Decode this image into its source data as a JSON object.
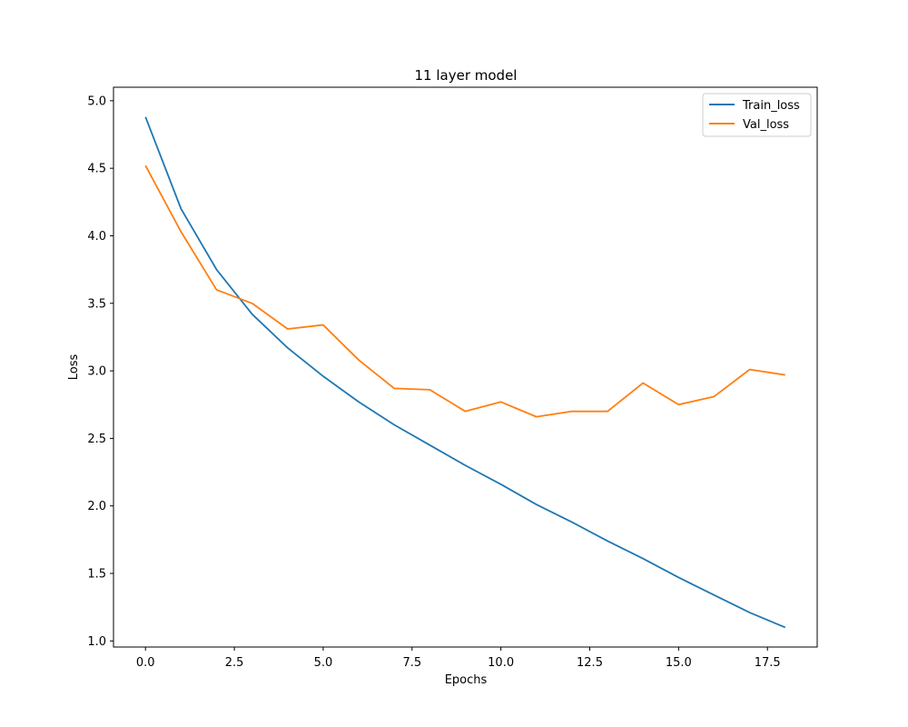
{
  "chart_data": {
    "type": "line",
    "title": "11 layer model",
    "xlabel": "Epochs",
    "ylabel": "Loss",
    "xlim": [
      -0.9,
      18.9
    ],
    "ylim": [
      0.955,
      5.1
    ],
    "x_ticks": [
      0,
      2.5,
      5,
      7.5,
      10,
      12.5,
      15,
      17.5
    ],
    "x_tick_labels": [
      "0.0",
      "2.5",
      "5.0",
      "7.5",
      "10.0",
      "12.5",
      "15.0",
      "17.5"
    ],
    "y_ticks": [
      1,
      1.5,
      2,
      2.5,
      3,
      3.5,
      4,
      4.5,
      5
    ],
    "y_tick_labels": [
      "1.0",
      "1.5",
      "2.0",
      "2.5",
      "3.0",
      "3.5",
      "4.0",
      "4.5",
      "5.0"
    ],
    "grid": false,
    "legend_position": "top-right",
    "x": [
      0,
      1,
      2,
      3,
      4,
      5,
      6,
      7,
      8,
      9,
      10,
      11,
      12,
      13,
      14,
      15,
      16,
      17,
      18
    ],
    "series": [
      {
        "name": "Train_loss",
        "color": "#1f77b4",
        "values": [
          4.88,
          4.2,
          3.75,
          3.42,
          3.17,
          2.96,
          2.77,
          2.6,
          2.45,
          2.3,
          2.16,
          2.01,
          1.88,
          1.74,
          1.61,
          1.47,
          1.34,
          1.21,
          1.1
        ]
      },
      {
        "name": "Val_loss",
        "color": "#ff7f0e",
        "values": [
          4.52,
          4.03,
          3.6,
          3.5,
          3.31,
          3.34,
          3.08,
          2.87,
          2.86,
          2.7,
          2.77,
          2.66,
          2.7,
          2.7,
          2.91,
          2.75,
          2.81,
          3.01,
          2.97
        ]
      }
    ]
  }
}
